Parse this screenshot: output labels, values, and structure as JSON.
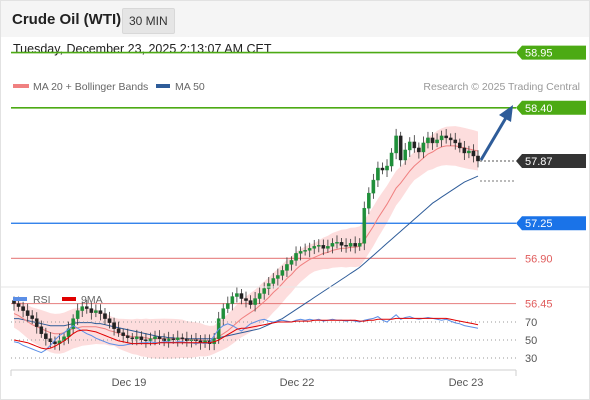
{
  "header": {
    "title": "Crude Oil (WTI)",
    "timeframe": "30 MIN",
    "datetime": "Tuesday, December 23, 2025 2:13:07 AM CET"
  },
  "legend": {
    "ma20_label": "MA 20 + Bollinger Bands",
    "ma20_color": "#f08080",
    "ma50_label": "MA 50",
    "ma50_color": "#2e5c99",
    "credit": "Research © 2025 Trading Central"
  },
  "price_levels": [
    {
      "label": "58.95",
      "value": 58.95,
      "color": "#4caa14",
      "style": "tag"
    },
    {
      "label": "58.40",
      "value": 58.4,
      "color": "#4caa14",
      "style": "tag"
    },
    {
      "label": "57.87",
      "value": 57.87,
      "color": "#333333",
      "style": "current"
    },
    {
      "label": "57.25",
      "value": 57.25,
      "color": "#1a73e8",
      "style": "tag"
    },
    {
      "label": "56.90",
      "value": 56.9,
      "color": "#e05c5c",
      "style": "text"
    },
    {
      "label": "56.45",
      "value": 56.45,
      "color": "#e05c5c",
      "style": "text"
    }
  ],
  "rsi_legend": {
    "rsi_label": "RSI",
    "rsi_color": "#5b8ee6",
    "ma_label": "9MA",
    "ma_color": "#e00000"
  },
  "rsi_levels": [
    "70",
    "50",
    "30"
  ],
  "x_ticks": [
    "Dec 19",
    "Dec 22",
    "Dec 23"
  ],
  "chart_data": {
    "type": "candlestick",
    "price_series_close": [
      56.45,
      56.42,
      56.38,
      56.33,
      56.3,
      56.22,
      56.15,
      56.1,
      56.07,
      56.05,
      56.08,
      56.12,
      56.2,
      56.3,
      56.38,
      56.42,
      56.4,
      56.36,
      56.38,
      56.35,
      56.3,
      56.26,
      56.2,
      56.16,
      56.13,
      56.11,
      56.1,
      56.12,
      56.09,
      56.08,
      56.1,
      56.12,
      56.1,
      56.08,
      56.1,
      56.09,
      56.11,
      56.1,
      56.08,
      56.09,
      56.08,
      56.06,
      56.08,
      56.05,
      56.1,
      56.3,
      56.4,
      56.45,
      56.52,
      56.55,
      56.5,
      56.48,
      56.44,
      56.5,
      56.55,
      56.6,
      56.65,
      56.7,
      56.73,
      56.78,
      56.84,
      56.88,
      56.95,
      56.97,
      56.98,
      57.0,
      57.02,
      57.03,
      57.0,
      57.02,
      57.05,
      57.06,
      57.03,
      57.02,
      57.05,
      57.02,
      57.05,
      57.4,
      57.55,
      57.68,
      57.8,
      57.78,
      57.82,
      57.95,
      58.12,
      57.88,
      57.98,
      58.06,
      58.0,
      57.96,
      58.05,
      58.1,
      58.05,
      58.08,
      58.12,
      58.1,
      58.08,
      58.05,
      58.0,
      57.95,
      57.97,
      57.92,
      57.87
    ],
    "ma20": [
      56.35,
      56.33,
      56.3,
      56.27,
      56.24,
      56.22,
      56.2,
      56.18,
      56.16,
      56.15,
      56.15,
      56.16,
      56.18,
      56.2,
      56.21,
      56.22,
      56.22,
      56.22,
      56.22,
      56.21,
      56.2,
      56.18,
      56.17,
      56.15,
      56.14,
      56.13,
      56.12,
      56.12,
      56.11,
      56.11,
      56.1,
      56.1,
      56.1,
      56.1,
      56.1,
      56.1,
      56.1,
      56.1,
      56.09,
      56.09,
      56.09,
      56.09,
      56.08,
      56.08,
      56.09,
      56.12,
      56.15,
      56.18,
      56.22,
      56.26,
      56.3,
      56.33,
      56.36,
      56.39,
      56.43,
      56.47,
      56.51,
      56.56,
      56.6,
      56.65,
      56.7,
      56.74,
      56.79,
      56.83,
      56.86,
      56.89,
      56.91,
      56.93,
      56.95,
      56.96,
      56.98,
      56.99,
      57.0,
      57.0,
      57.01,
      57.01,
      57.02,
      57.08,
      57.15,
      57.22,
      57.3,
      57.37,
      57.44,
      57.52,
      57.6,
      57.65,
      57.71,
      57.77,
      57.82,
      57.86,
      57.9,
      57.94,
      57.96,
      57.99,
      58.01,
      58.02,
      58.02,
      58.02,
      58.01,
      58.0,
      57.99,
      57.98,
      57.97
    ],
    "ma50": [
      56.3,
      56.3,
      56.29,
      56.28,
      56.27,
      56.26,
      56.25,
      56.24,
      56.23,
      56.23,
      56.23,
      56.23,
      56.24,
      56.25,
      56.26,
      56.26,
      56.26,
      56.26,
      56.25,
      56.25,
      56.24,
      56.23,
      56.22,
      56.21,
      56.2,
      56.19,
      56.18,
      56.17,
      56.16,
      56.15,
      56.14,
      56.13,
      56.12,
      56.12,
      56.11,
      56.11,
      56.1,
      56.1,
      56.1,
      56.1,
      56.1,
      56.1,
      56.1,
      56.1,
      56.1,
      56.11,
      56.12,
      56.13,
      56.14,
      56.15,
      56.16,
      56.17,
      56.18,
      56.19,
      56.2,
      56.22,
      56.24,
      56.26,
      56.28,
      56.3,
      56.33,
      56.36,
      56.39,
      56.42,
      56.45,
      56.48,
      56.51,
      56.54,
      56.57,
      56.6,
      56.63,
      56.66,
      56.69,
      56.72,
      56.75,
      56.78,
      56.81,
      56.85,
      56.89,
      56.93,
      56.97,
      57.01,
      57.05,
      57.09,
      57.13,
      57.17,
      57.21,
      57.25,
      57.29,
      57.33,
      57.37,
      57.41,
      57.45,
      57.48,
      57.51,
      57.54,
      57.57,
      57.6,
      57.63,
      57.66,
      57.68,
      57.7,
      57.72
    ],
    "rsi": [
      48,
      47,
      44,
      42,
      40,
      38,
      36,
      39,
      44,
      50,
      55,
      58,
      62,
      66,
      63,
      60,
      57,
      55,
      52,
      50,
      48,
      46,
      45,
      44,
      44,
      45,
      46,
      46,
      47,
      47,
      48,
      47,
      47,
      48,
      48,
      47,
      48,
      48,
      47,
      47,
      46,
      47,
      46,
      47,
      55,
      62,
      66,
      68,
      66,
      63,
      60,
      64,
      68,
      70,
      72,
      73,
      71,
      70,
      71,
      72,
      71,
      70,
      72,
      73,
      72,
      73,
      72,
      73,
      71,
      72,
      73,
      72,
      72,
      71,
      72,
      71,
      70,
      72,
      73,
      74,
      76,
      72,
      70,
      74,
      78,
      73,
      75,
      76,
      74,
      73,
      74,
      75,
      74,
      73,
      72,
      73,
      71,
      69,
      68,
      66,
      65,
      64,
      63
    ],
    "rsi_ma": [
      50,
      49,
      48,
      47,
      45,
      43,
      41,
      40,
      41,
      43,
      46,
      49,
      53,
      57,
      60,
      61,
      61,
      60,
      59,
      57,
      55,
      53,
      51,
      49,
      48,
      47,
      46,
      46,
      46,
      46,
      46,
      46,
      47,
      47,
      47,
      47,
      47,
      47,
      47,
      47,
      47,
      47,
      47,
      47,
      48,
      50,
      53,
      56,
      59,
      62,
      63,
      63,
      64,
      65,
      66,
      67,
      68,
      69,
      70,
      70,
      70,
      70,
      71,
      71,
      71,
      71,
      72,
      72,
      72,
      72,
      72,
      72,
      72,
      72,
      72,
      72,
      71,
      71,
      72,
      72,
      73,
      73,
      73,
      73,
      74,
      74,
      74,
      74,
      74,
      74,
      74,
      74,
      74,
      74,
      74,
      74,
      73,
      72,
      71,
      70,
      69,
      68,
      67
    ],
    "y_axis_rsi": [
      30,
      50,
      70
    ],
    "x_labels": [
      "Dec 19",
      "Dec 22",
      "Dec 23"
    ]
  }
}
